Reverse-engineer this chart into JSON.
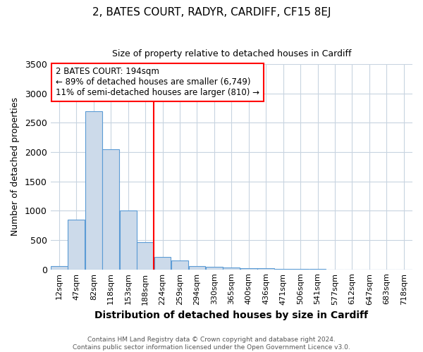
{
  "title": "2, BATES COURT, RADYR, CARDIFF, CF15 8EJ",
  "subtitle": "Size of property relative to detached houses in Cardiff",
  "xlabel": "Distribution of detached houses by size in Cardiff",
  "ylabel": "Number of detached properties",
  "categories": [
    "12sqm",
    "47sqm",
    "82sqm",
    "118sqm",
    "153sqm",
    "188sqm",
    "224sqm",
    "259sqm",
    "294sqm",
    "330sqm",
    "365sqm",
    "400sqm",
    "436sqm",
    "471sqm",
    "506sqm",
    "541sqm",
    "577sqm",
    "612sqm",
    "647sqm",
    "683sqm",
    "718sqm"
  ],
  "values": [
    60,
    850,
    2700,
    2050,
    1000,
    460,
    210,
    155,
    60,
    40,
    30,
    20,
    15,
    10,
    5,
    3,
    2,
    1,
    1,
    0,
    0
  ],
  "bar_color": "#ccdaea",
  "bar_edge_color": "#5b9bd5",
  "red_line_x": 5.5,
  "annotation_line1": "2 BATES COURT: 194sqm",
  "annotation_line2": "← 89% of detached houses are smaller (6,749)",
  "annotation_line3": "11% of semi-detached houses are larger (810) →",
  "ylim": [
    0,
    3500
  ],
  "yticks": [
    0,
    500,
    1000,
    1500,
    2000,
    2500,
    3000,
    3500
  ],
  "footer1": "Contains HM Land Registry data © Crown copyright and database right 2024.",
  "footer2": "Contains public sector information licensed under the Open Government Licence v3.0.",
  "bg_color": "#ffffff",
  "grid_color": "#c8d4e0",
  "title_fontsize": 11,
  "subtitle_fontsize": 9,
  "xlabel_fontsize": 10,
  "ylabel_fontsize": 9,
  "tick_fontsize": 8,
  "annotation_fontsize": 8.5,
  "footer_fontsize": 6.5
}
